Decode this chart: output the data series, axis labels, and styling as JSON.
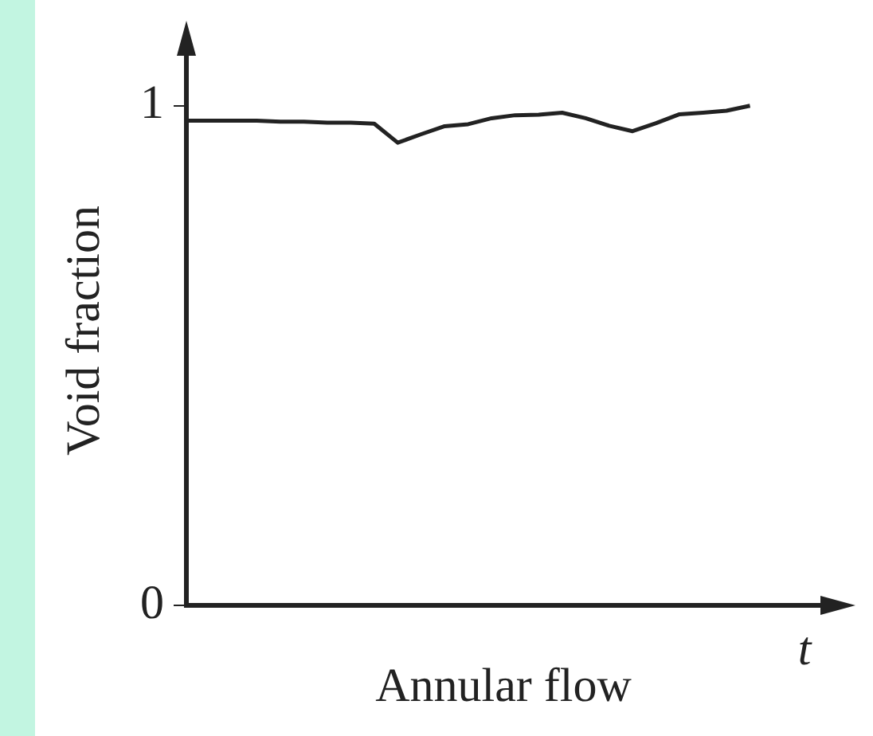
{
  "chart_data": {
    "type": "line",
    "xlabel": "Annular flow",
    "ylabel": "Void fraction",
    "annotations": [
      "t"
    ],
    "categories": [
      null,
      null,
      null,
      null,
      null,
      null,
      null,
      null,
      null,
      null,
      null,
      null,
      null,
      null,
      null,
      null,
      null,
      null,
      null,
      null,
      null,
      null,
      null,
      null,
      null,
      null,
      null,
      null
    ],
    "series": [
      {
        "color": "#222222",
        "values": [
          0.97,
          0.97,
          0.97,
          0.97,
          0.968,
          0.968,
          0.966,
          0.966,
          0.964,
          0.926,
          0.943,
          0.959,
          0.963,
          0.975,
          0.981,
          0.982,
          0.986,
          0.975,
          0.96,
          0.949,
          0.965,
          0.983,
          0.986,
          0.99,
          1.0,
          null,
          null,
          null
        ]
      }
    ],
    "ylim": [
      0,
      1.1
    ],
    "yticks": [
      0,
      1
    ],
    "tick_labels": "y",
    "grid": false,
    "legend": false,
    "marker": "none",
    "line_style": "solid"
  }
}
